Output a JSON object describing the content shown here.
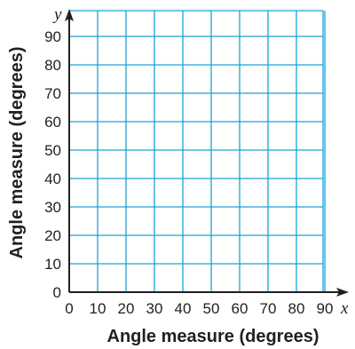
{
  "chart_data": {
    "type": "scatter",
    "series": [],
    "x_variable": "x",
    "y_variable": "y",
    "xlabel": "Angle measure (degrees)",
    "ylabel": "Angle measure (degrees)",
    "xlim": [
      0,
      100
    ],
    "ylim": [
      0,
      100
    ],
    "x_ticks": [
      "0",
      "10",
      "20",
      "30",
      "40",
      "50",
      "60",
      "70",
      "80",
      "90"
    ],
    "y_ticks": [
      "0",
      "10",
      "20",
      "30",
      "40",
      "50",
      "60",
      "70",
      "80",
      "90"
    ],
    "grid": true,
    "grid_color": "#1aa3d6",
    "axis_color": "#231f20"
  }
}
